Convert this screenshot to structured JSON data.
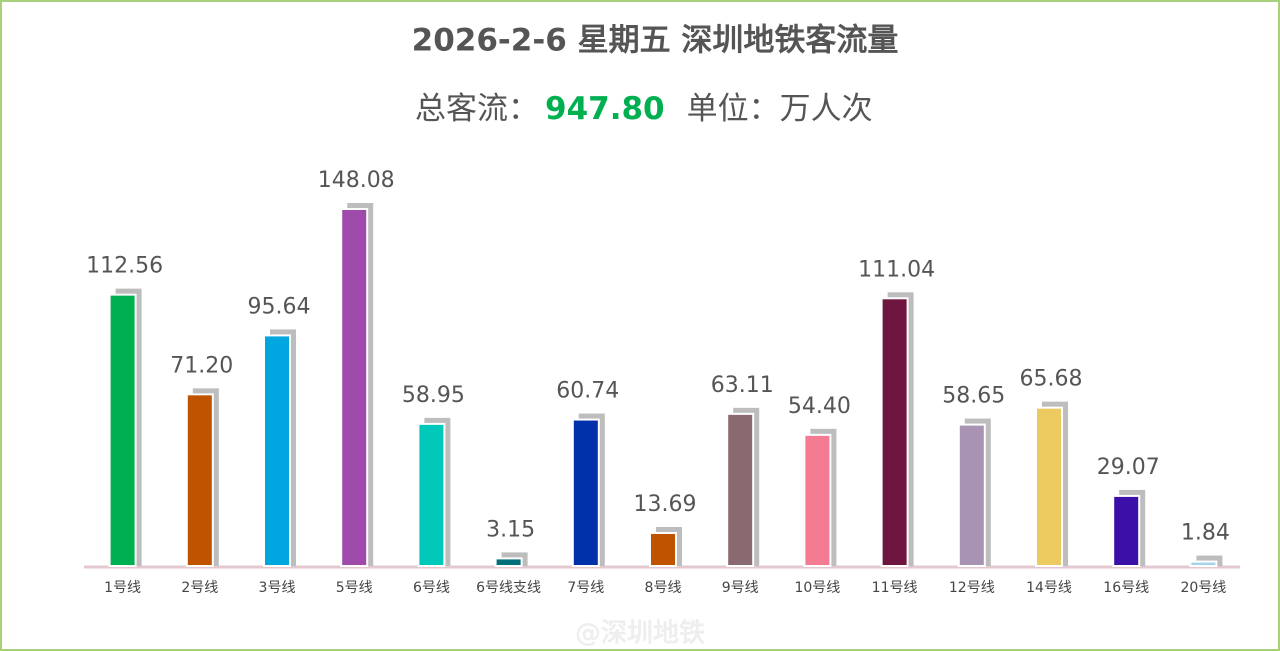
{
  "chart_data": {
    "type": "bar",
    "title": "2026-2-6 星期五  深圳地铁客流量",
    "total_prefix": "总客流：",
    "total": {
      "value": 947.8,
      "label": "947.80"
    },
    "unit": "单位：万人次",
    "watermark": "@深圳地铁",
    "categories": [
      "1号线",
      "2号线",
      "3号线",
      "5号线",
      "6号线",
      "6号线支线",
      "7号线",
      "8号线",
      "9号线",
      "10号线",
      "11号线",
      "12号线",
      "14号线",
      "16号线",
      "20号线"
    ],
    "values": [
      112.56,
      71.2,
      95.64,
      148.08,
      58.95,
      3.15,
      60.74,
      13.69,
      63.11,
      54.4,
      111.04,
      58.65,
      65.68,
      29.07,
      1.84
    ],
    "value_labels": [
      "112.56",
      "71.20",
      "95.64",
      "148.08",
      "58.95",
      "3.15",
      "60.74",
      "13.69",
      "63.11",
      "54.40",
      "111.04",
      "58.65",
      "65.68",
      "29.07",
      "1.84"
    ],
    "colors": [
      "#00b050",
      "#c05300",
      "#00a6e0",
      "#9e4aab",
      "#00c8bb",
      "#006f7a",
      "#0030aa",
      "#c05300",
      "#8a6a70",
      "#f47b92",
      "#6e1540",
      "#a893b5",
      "#ecca60",
      "#3c0fa8",
      "#a7d3ea"
    ]
  }
}
